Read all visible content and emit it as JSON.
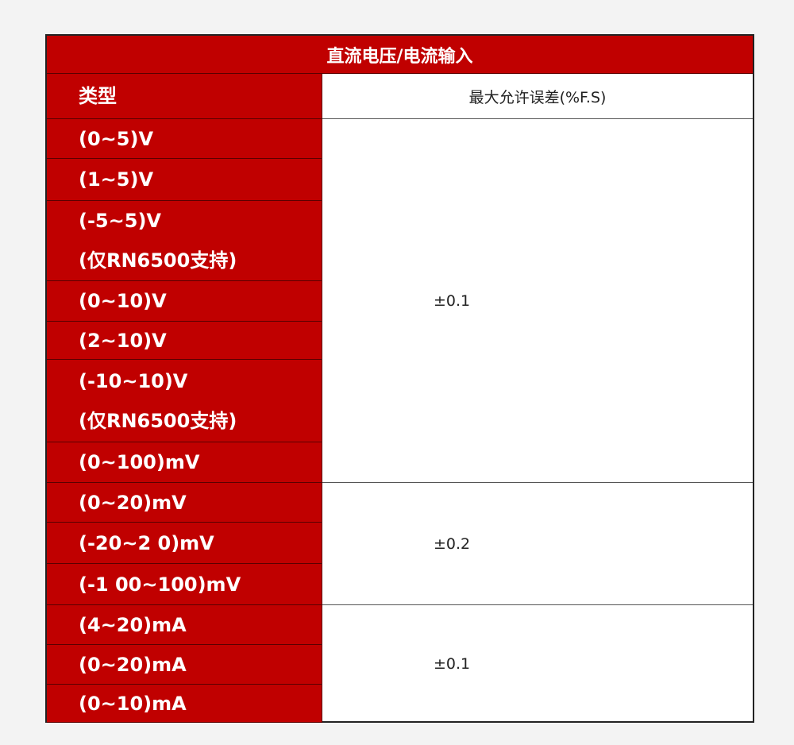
{
  "title": "直流电压/电流输入",
  "header": {
    "type": "类型",
    "error": "最大允许误差(%F.S)"
  },
  "rows": [
    [
      "(0~5)V"
    ],
    [
      "(1~5)V"
    ],
    [
      "(-5~5)V",
      "(仅RN6500支持)"
    ],
    [
      "(0~10)V"
    ],
    [
      "(2~10)V"
    ],
    [
      "(-10~10)V",
      "(仅RN6500支持)"
    ],
    [
      "(0~100)mV"
    ],
    [
      "(0~20)mV"
    ],
    [
      "(-20~2 0)mV"
    ],
    [
      "(-1 00~100)mV"
    ],
    [
      "(4~20)mA"
    ],
    [
      "(0~20)mA"
    ],
    [
      "(0~10)mA"
    ]
  ],
  "errors": [
    "±0.1",
    "±0.2",
    "±0.1"
  ],
  "colors": {
    "accent": "#c00000"
  }
}
